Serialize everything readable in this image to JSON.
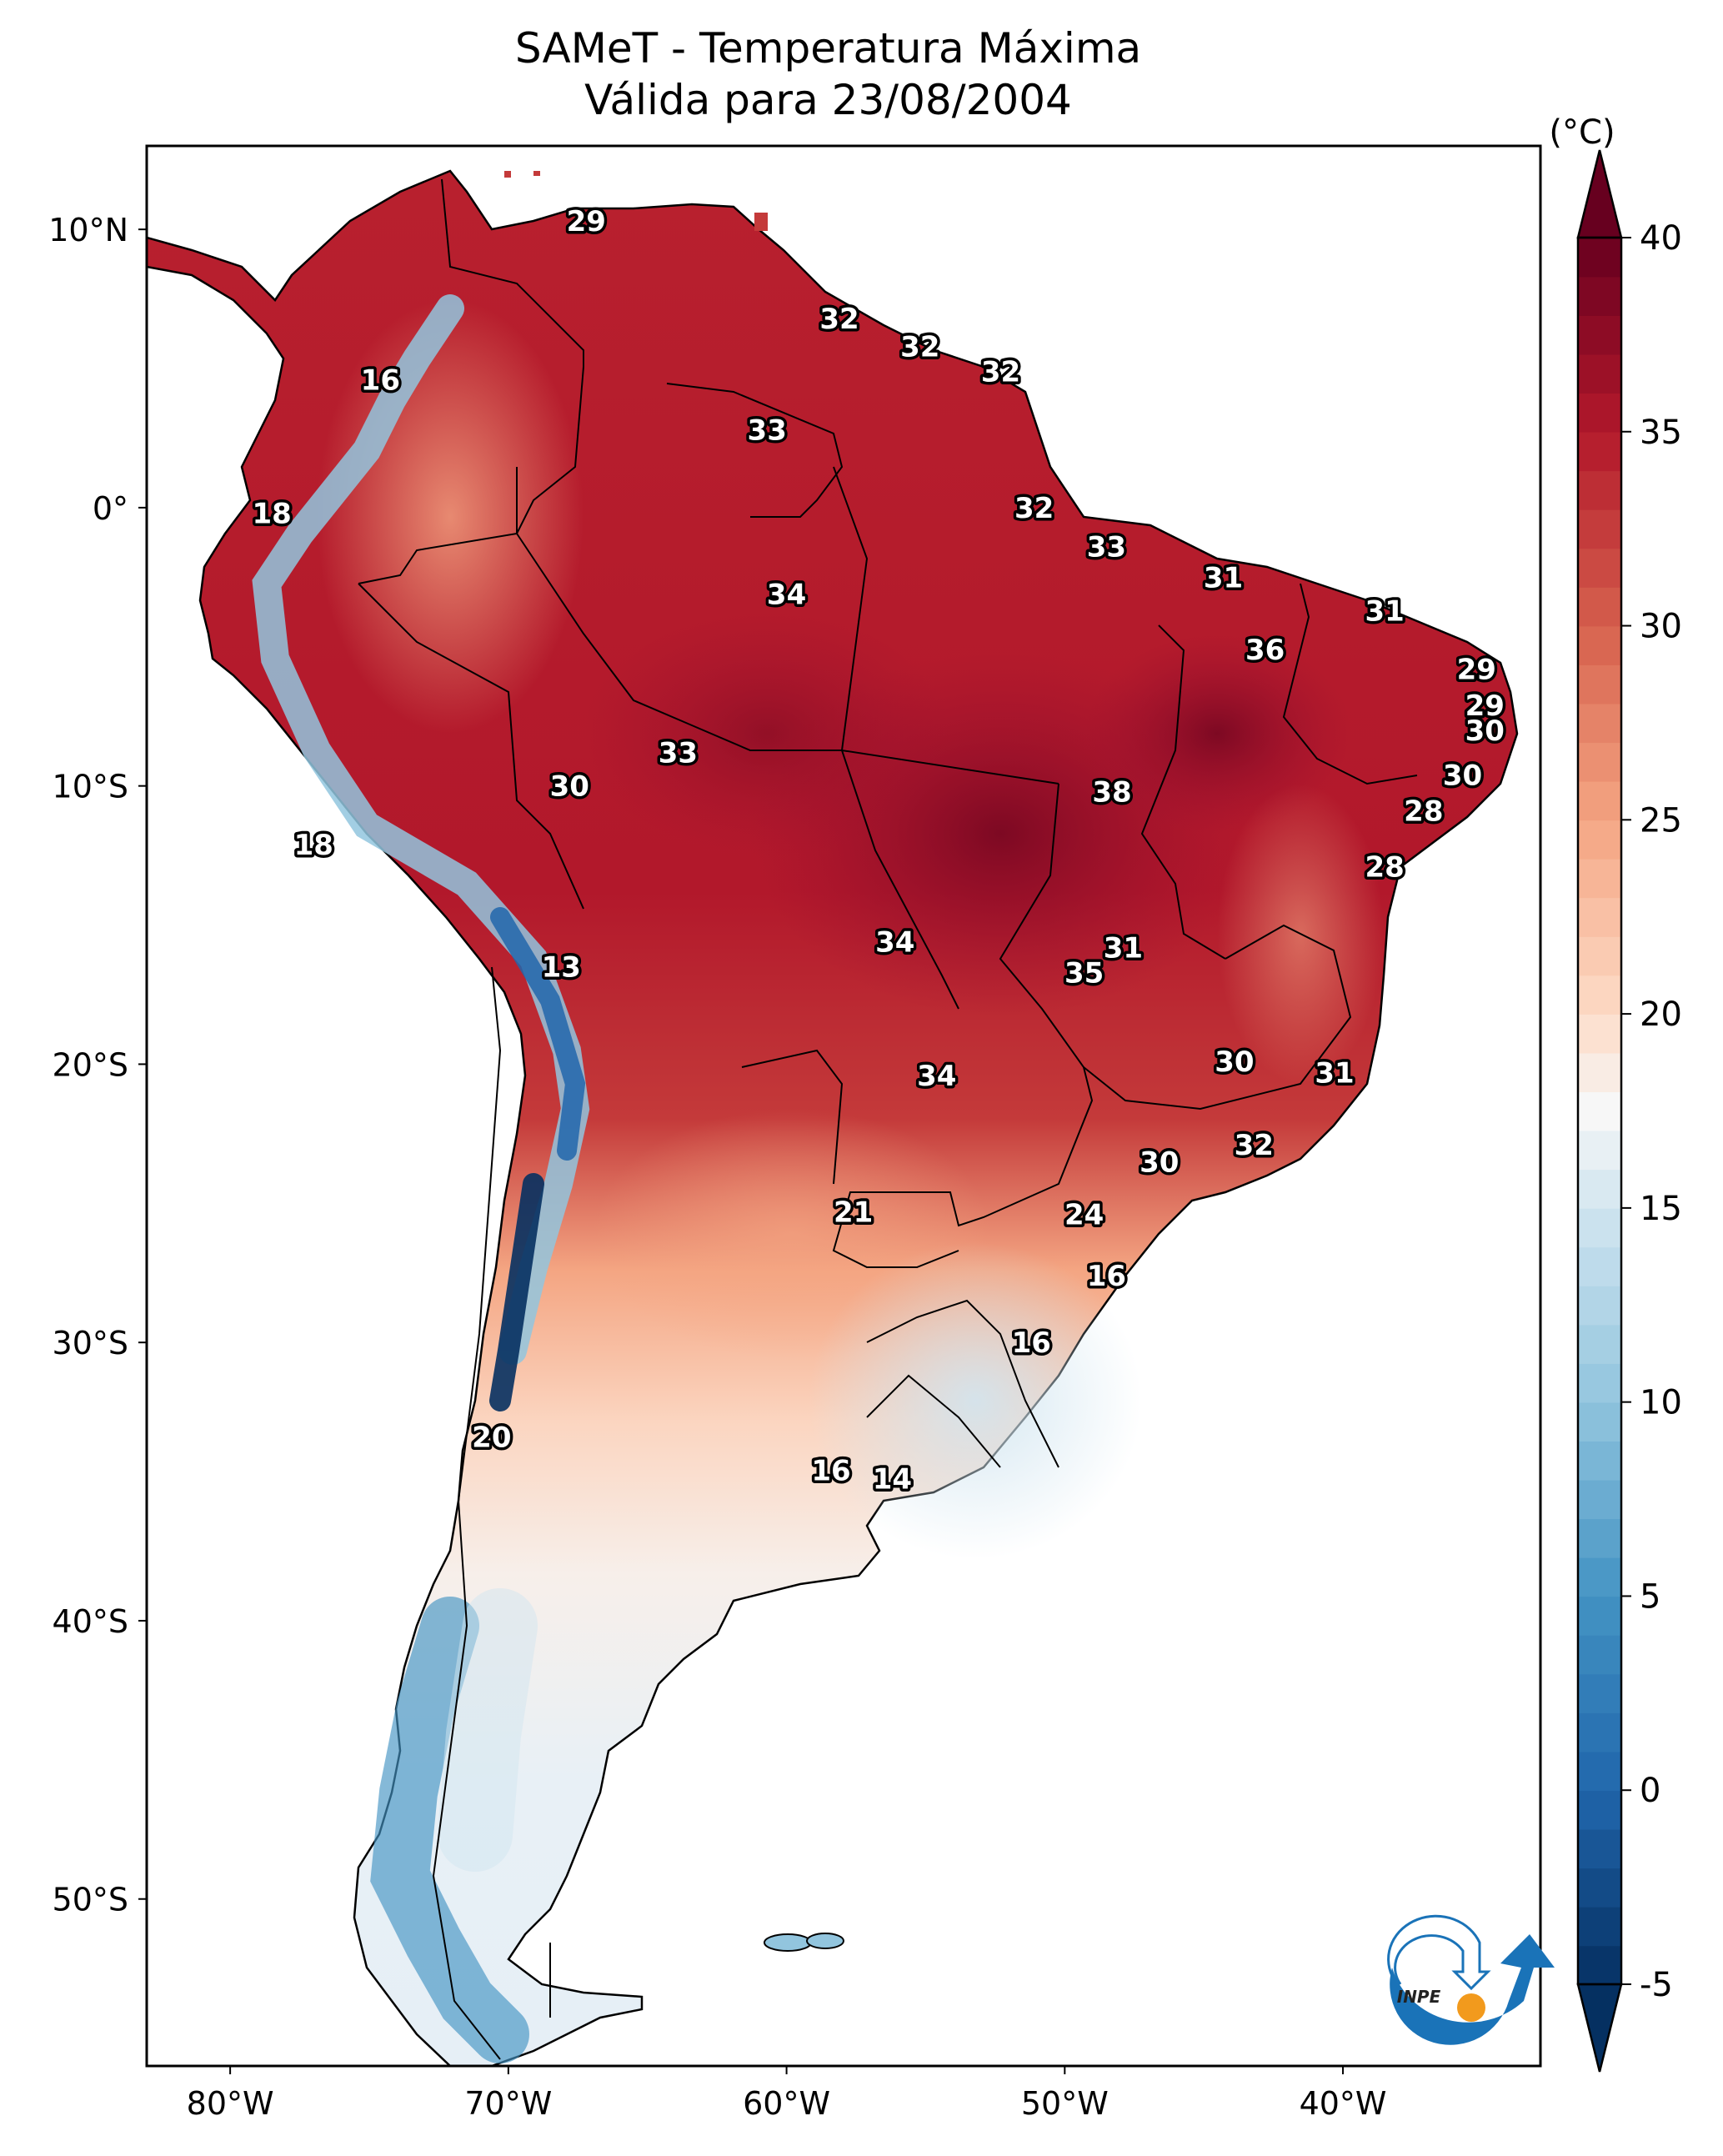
{
  "figure": {
    "title_line1": "SAMeT - Temperatura Máxima",
    "title_line2": "Válida para 23/08/2004",
    "logo_text": "INPE"
  },
  "chart_data": {
    "type": "heatmap",
    "title": "SAMeT - Temperatura Máxima Válida para 23/08/2004",
    "variable": "Maximum temperature",
    "date": "23/08/2004",
    "xlabel": "",
    "ylabel": "",
    "x_range_lon": [
      -83,
      -32.9
    ],
    "y_range_lat": [
      13,
      -56
    ],
    "x_ticks": [
      {
        "value": -80,
        "label": "80°W"
      },
      {
        "value": -70,
        "label": "70°W"
      },
      {
        "value": -60,
        "label": "60°W"
      },
      {
        "value": -50,
        "label": "50°W"
      },
      {
        "value": -40,
        "label": "40°W"
      }
    ],
    "y_ticks": [
      {
        "value": 10,
        "label": "10°N"
      },
      {
        "value": 0,
        "label": "0°"
      },
      {
        "value": -10,
        "label": "10°S"
      },
      {
        "value": -20,
        "label": "20°S"
      },
      {
        "value": -30,
        "label": "30°S"
      },
      {
        "value": -40,
        "label": "40°S"
      },
      {
        "value": -50,
        "label": "50°S"
      }
    ],
    "colorbar": {
      "label": "(°C)",
      "colormap": "RdBu_r",
      "range": [
        -5,
        40
      ],
      "extend": "both",
      "ticks": [
        {
          "value": 40,
          "label": "40"
        },
        {
          "value": 35,
          "label": "35"
        },
        {
          "value": 30,
          "label": "30"
        },
        {
          "value": 25,
          "label": "25"
        },
        {
          "value": 20,
          "label": "20"
        },
        {
          "value": 15,
          "label": "15"
        },
        {
          "value": 10,
          "label": "10"
        },
        {
          "value": 5,
          "label": "5"
        },
        {
          "value": 0,
          "label": "0"
        },
        {
          "value": -5,
          "label": "-5"
        }
      ],
      "stops": [
        {
          "value": -5,
          "color": "#053061"
        },
        {
          "value": 0,
          "color": "#2166ac"
        },
        {
          "value": 5,
          "color": "#4393c3"
        },
        {
          "value": 10,
          "color": "#92c5de"
        },
        {
          "value": 15,
          "color": "#d1e5f0"
        },
        {
          "value": 17.5,
          "color": "#f7f7f7"
        },
        {
          "value": 20,
          "color": "#fddbc7"
        },
        {
          "value": 25,
          "color": "#f4a582"
        },
        {
          "value": 30,
          "color": "#d6604d"
        },
        {
          "value": 35,
          "color": "#b2182b"
        },
        {
          "value": 40,
          "color": "#67001f"
        }
      ]
    },
    "station_labels": [
      {
        "lon": -67.2,
        "lat": 10.3,
        "value": "29"
      },
      {
        "lon": -74.6,
        "lat": 4.6,
        "value": "16"
      },
      {
        "lon": -78.5,
        "lat": -0.2,
        "value": "18"
      },
      {
        "lon": -58.1,
        "lat": 6.8,
        "value": "32"
      },
      {
        "lon": -55.2,
        "lat": 5.8,
        "value": "32"
      },
      {
        "lon": -52.3,
        "lat": 4.9,
        "value": "32"
      },
      {
        "lon": -60.7,
        "lat": 2.8,
        "value": "33"
      },
      {
        "lon": -51.1,
        "lat": 0.0,
        "value": "32"
      },
      {
        "lon": -48.5,
        "lat": -1.4,
        "value": "33"
      },
      {
        "lon": -44.3,
        "lat": -2.5,
        "value": "31"
      },
      {
        "lon": -38.5,
        "lat": -3.7,
        "value": "31"
      },
      {
        "lon": -60.0,
        "lat": -3.1,
        "value": "34"
      },
      {
        "lon": -42.8,
        "lat": -5.1,
        "value": "36"
      },
      {
        "lon": -35.2,
        "lat": -5.8,
        "value": "29"
      },
      {
        "lon": -34.9,
        "lat": -7.1,
        "value": "29"
      },
      {
        "lon": -34.9,
        "lat": -8.0,
        "value": "30"
      },
      {
        "lon": -35.7,
        "lat": -9.6,
        "value": "30"
      },
      {
        "lon": -37.1,
        "lat": -10.9,
        "value": "28"
      },
      {
        "lon": -38.5,
        "lat": -12.9,
        "value": "28"
      },
      {
        "lon": -63.9,
        "lat": -8.8,
        "value": "33"
      },
      {
        "lon": -67.8,
        "lat": -10.0,
        "value": "30"
      },
      {
        "lon": -48.3,
        "lat": -10.2,
        "value": "38"
      },
      {
        "lon": -77.0,
        "lat": -12.1,
        "value": "18"
      },
      {
        "lon": -68.1,
        "lat": -16.5,
        "value": "13"
      },
      {
        "lon": -56.1,
        "lat": -15.6,
        "value": "34"
      },
      {
        "lon": -47.9,
        "lat": -15.8,
        "value": "31"
      },
      {
        "lon": -49.3,
        "lat": -16.7,
        "value": "35"
      },
      {
        "lon": -54.6,
        "lat": -20.4,
        "value": "34"
      },
      {
        "lon": -43.9,
        "lat": -19.9,
        "value": "30"
      },
      {
        "lon": -40.3,
        "lat": -20.3,
        "value": "31"
      },
      {
        "lon": -43.2,
        "lat": -22.9,
        "value": "32"
      },
      {
        "lon": -46.6,
        "lat": -23.5,
        "value": "30"
      },
      {
        "lon": -57.6,
        "lat": -25.3,
        "value": "21"
      },
      {
        "lon": -49.3,
        "lat": -25.4,
        "value": "24"
      },
      {
        "lon": -48.5,
        "lat": -27.6,
        "value": "16"
      },
      {
        "lon": -51.2,
        "lat": -30.0,
        "value": "16"
      },
      {
        "lon": -70.6,
        "lat": -33.4,
        "value": "20"
      },
      {
        "lon": -58.4,
        "lat": -34.6,
        "value": "16"
      },
      {
        "lon": -56.2,
        "lat": -34.9,
        "value": "14"
      }
    ]
  }
}
